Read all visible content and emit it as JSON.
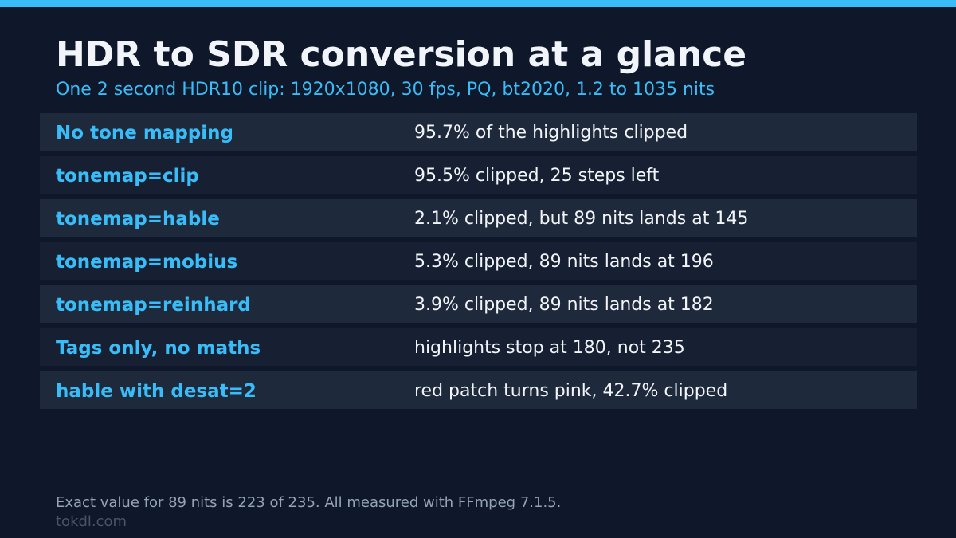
{
  "title": "HDR to SDR conversion at a glance",
  "subtitle": "One 2 second HDR10 clip: 1920x1080, 30 fps, PQ, bt2020, 1.2 to 1035 nits",
  "rows": [
    {
      "label": "No tone mapping",
      "value": "95.7% of the highlights clipped"
    },
    {
      "label": "tonemap=clip",
      "value": "95.5% clipped, 25 steps left"
    },
    {
      "label": "tonemap=hable",
      "value": "2.1% clipped, but 89 nits lands at 145"
    },
    {
      "label": "tonemap=mobius",
      "value": "5.3% clipped, 89 nits lands at 196"
    },
    {
      "label": "tonemap=reinhard",
      "value": "3.9% clipped, 89 nits lands at 182"
    },
    {
      "label": "Tags only, no maths",
      "value": "highlights stop at 180, not 235"
    },
    {
      "label": "hable with desat=2",
      "value": "red patch turns pink, 42.7% clipped"
    }
  ],
  "footnote": "Exact value for 89 nits is 223 of 235. All measured with FFmpeg 7.1.5.",
  "site": "tokdl.com",
  "colors": {
    "background": "#0f172a",
    "accent": "#38bdf8",
    "row_odd": "#1e293b",
    "row_even": "#172033",
    "text": "#f1f5f9",
    "muted": "#94a3b8"
  }
}
